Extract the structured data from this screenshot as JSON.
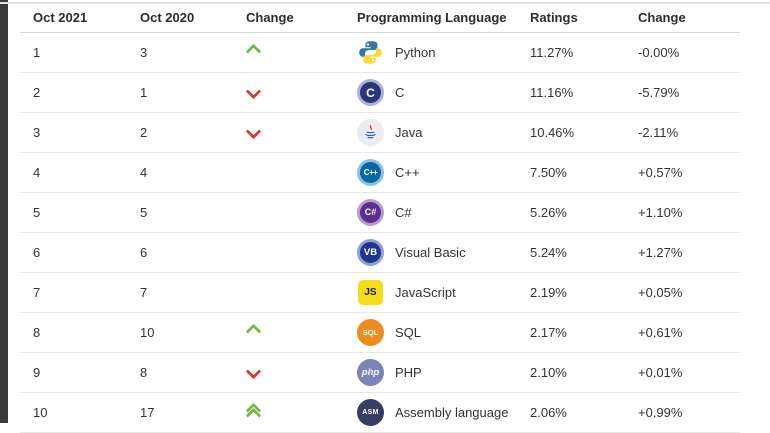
{
  "colors": {
    "up_arrow": "#79b943",
    "down_arrow": "#d63a32"
  },
  "table": {
    "headers": [
      "Oct 2021",
      "Oct 2020",
      "Change",
      "Programming Language",
      "Ratings",
      "Change"
    ],
    "rows": [
      {
        "oct2021": "1",
        "oct2020": "3",
        "trend": "up",
        "language": "Python",
        "icon": "python",
        "icon_label": "",
        "ratings": "11.27%",
        "change": "-0.00%"
      },
      {
        "oct2021": "2",
        "oct2020": "1",
        "trend": "down",
        "language": "C",
        "icon": "c",
        "icon_label": "C",
        "ratings": "11.16%",
        "change": "-5.79%"
      },
      {
        "oct2021": "3",
        "oct2020": "2",
        "trend": "down",
        "language": "Java",
        "icon": "java",
        "icon_label": "",
        "ratings": "10.46%",
        "change": "-2.11%"
      },
      {
        "oct2021": "4",
        "oct2020": "4",
        "trend": "none",
        "language": "C++",
        "icon": "cpp",
        "icon_label": "C++",
        "ratings": "7.50%",
        "change": "+0.57%"
      },
      {
        "oct2021": "5",
        "oct2020": "5",
        "trend": "none",
        "language": "C#",
        "icon": "csharp",
        "icon_label": "C#",
        "ratings": "5.26%",
        "change": "+1.10%"
      },
      {
        "oct2021": "6",
        "oct2020": "6",
        "trend": "none",
        "language": "Visual Basic",
        "icon": "visual-basic",
        "icon_label": "VB",
        "ratings": "5.24%",
        "change": "+1.27%"
      },
      {
        "oct2021": "7",
        "oct2020": "7",
        "trend": "none",
        "language": "JavaScript",
        "icon": "javascript",
        "icon_label": "JS",
        "ratings": "2.19%",
        "change": "+0.05%"
      },
      {
        "oct2021": "8",
        "oct2020": "10",
        "trend": "up",
        "language": "SQL",
        "icon": "sql",
        "icon_label": "SQL",
        "ratings": "2.17%",
        "change": "+0.61%"
      },
      {
        "oct2021": "9",
        "oct2020": "8",
        "trend": "down",
        "language": "PHP",
        "icon": "php",
        "icon_label": "php",
        "ratings": "2.10%",
        "change": "+0.01%"
      },
      {
        "oct2021": "10",
        "oct2020": "17",
        "trend": "double-up",
        "language": "Assembly language",
        "icon": "assembly",
        "icon_label": "ASM",
        "ratings": "2.06%",
        "change": "+0.99%"
      }
    ]
  }
}
